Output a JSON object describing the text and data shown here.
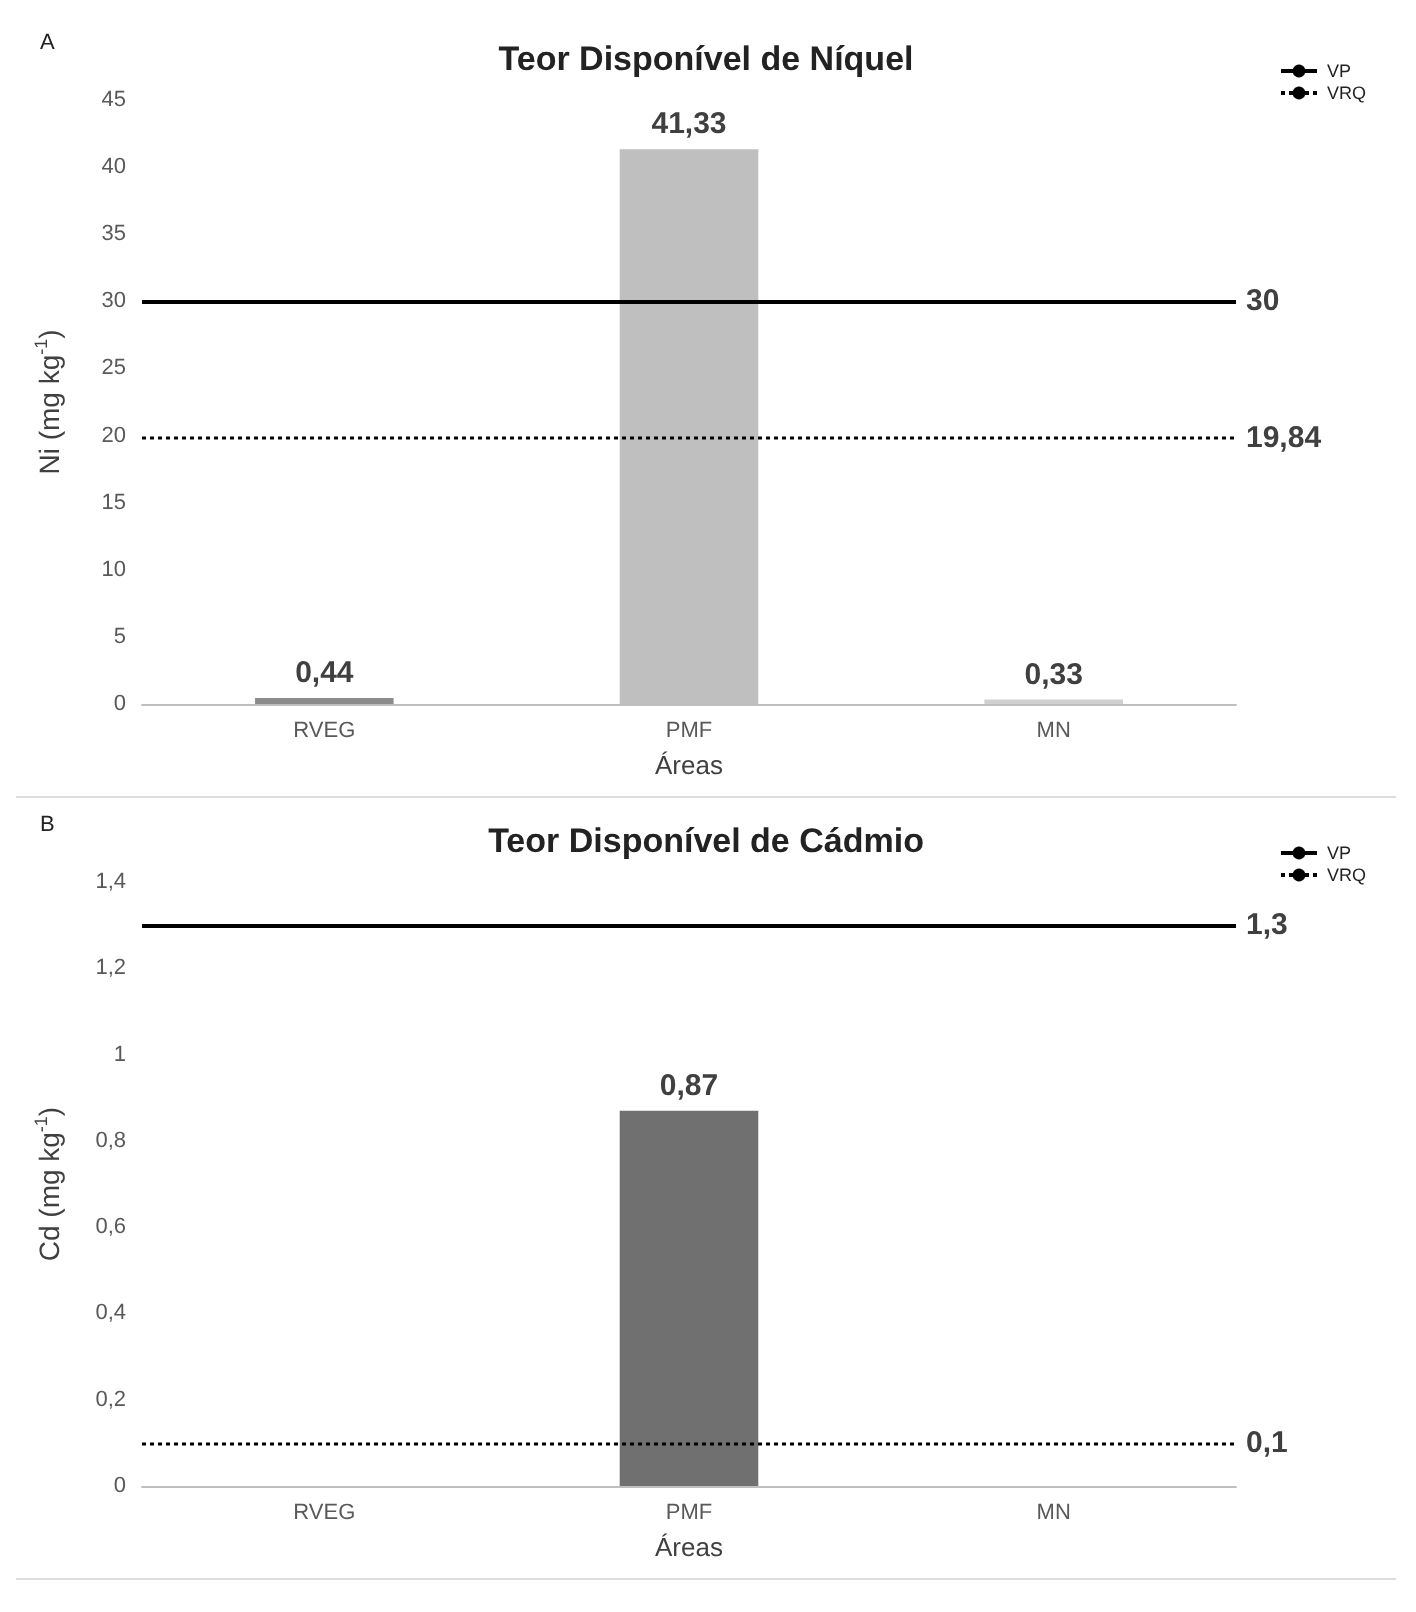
{
  "chart_data": [
    {
      "type": "bar",
      "title": "Teor Disponível de Níquel",
      "xlabel": "Áreas",
      "ylabel": "Ni (mg kg$^{-1}$)",
      "annotations": [
        "A",
        "30",
        "19,84"
      ],
      "categories": [
        "RVEG",
        "PMF",
        "MN"
      ],
      "values": [
        0.44,
        41.33,
        0.33
      ],
      "colors": [
        "#8c8c8c",
        "#bfbfbf",
        "#d0d0d0"
      ],
      "value_labels": [
        "0,44",
        "41,33",
        "0,33"
      ],
      "ylim": [
        0,
        45
      ],
      "yticks": [
        0,
        5,
        10,
        15,
        20,
        25,
        30,
        35,
        40,
        45
      ],
      "ref_lines": [
        {
          "axis": "y",
          "value": 30,
          "label": "VP",
          "line_style": "solid",
          "color": "#000000"
        },
        {
          "axis": "y",
          "value": 19.84,
          "label": "VRQ",
          "line_style": "dotted",
          "color": "#000000"
        }
      ],
      "grid": false,
      "legend": "top right"
    },
    {
      "type": "bar",
      "title": "Teor Disponível de Cádmio",
      "xlabel": "Áreas",
      "ylabel": "Cd (mg kg$^{-1}$)",
      "annotations": [
        "B",
        "1,3",
        "0,1"
      ],
      "categories": [
        "RVEG",
        "PMF",
        "MN"
      ],
      "values": [
        null,
        0.87,
        null
      ],
      "colors": [
        "#8c8c8c",
        "#707070",
        "#d0d0d0"
      ],
      "value_labels": [
        null,
        "0,87",
        null
      ],
      "ylim": [
        0,
        1.4
      ],
      "yticks": [
        0,
        {
          "value": 0.2,
          "label": "0,2"
        },
        {
          "value": 0.4,
          "label": "0,4"
        },
        {
          "value": 0.6,
          "label": "0,6"
        },
        {
          "value": 0.8,
          "label": "0,8"
        },
        1,
        {
          "value": 1.2,
          "label": "1,2"
        },
        {
          "value": 1.4,
          "label": "1,4"
        }
      ],
      "ref_lines": [
        {
          "axis": "y",
          "value": 1.3,
          "label": "VP",
          "line_style": "solid",
          "color": "#000000"
        },
        {
          "axis": "y",
          "value": 0.1,
          "label": "VRQ",
          "line_style": "dotted",
          "color": "#000000"
        }
      ],
      "grid": false,
      "legend": "top right"
    }
  ]
}
